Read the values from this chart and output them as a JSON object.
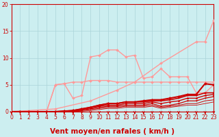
{
  "bg_color": "#cceef0",
  "grid_color": "#aad4d8",
  "axis_color": "#cc0000",
  "xlabel": "Vent moyen/en rafales ( km/h )",
  "xlim": [
    0,
    23
  ],
  "ylim": [
    0,
    20
  ],
  "yticks": [
    0,
    5,
    10,
    15,
    20
  ],
  "xticks": [
    0,
    1,
    2,
    3,
    4,
    5,
    6,
    7,
    8,
    9,
    10,
    11,
    12,
    13,
    14,
    15,
    16,
    17,
    18,
    19,
    20,
    21,
    22,
    23
  ],
  "series": [
    {
      "x": [
        0,
        5,
        9,
        12,
        14,
        17,
        21,
        22,
        23
      ],
      "y": [
        0,
        0.5,
        2.0,
        4.0,
        5.5,
        9.0,
        13.0,
        13.0,
        17.0
      ],
      "color": "#ff9999",
      "lw": 1.0,
      "marker": "D",
      "ms": 2.0
    },
    {
      "x": [
        0,
        4,
        5,
        6,
        7,
        8,
        9,
        10,
        11,
        12,
        13,
        14,
        15,
        16,
        17,
        18,
        19,
        20,
        21,
        22,
        23
      ],
      "y": [
        0,
        0,
        5,
        5.2,
        2.5,
        3.0,
        10.2,
        10.5,
        11.5,
        11.5,
        10.2,
        10.5,
        6.2,
        6.5,
        8.0,
        6.5,
        6.5,
        6.5,
        3.5,
        3.5,
        5.0
      ],
      "color": "#ff9999",
      "lw": 1.0,
      "marker": "D",
      "ms": 2.0
    },
    {
      "x": [
        0,
        4,
        5,
        6,
        7,
        8,
        9,
        10,
        11,
        12,
        13,
        14,
        15,
        16,
        17,
        18,
        19,
        20,
        21,
        22,
        23
      ],
      "y": [
        0,
        0,
        5,
        5.2,
        5.5,
        5.5,
        5.8,
        5.8,
        5.8,
        5.5,
        5.5,
        5.5,
        5.5,
        5.5,
        5.5,
        5.5,
        5.5,
        5.5,
        5.5,
        5.5,
        5.5
      ],
      "color": "#ff9999",
      "lw": 1.0,
      "marker": "D",
      "ms": 2.0
    },
    {
      "x": [
        0,
        1,
        2,
        3,
        4,
        5,
        6,
        7,
        8,
        9,
        10,
        11,
        12,
        13,
        14,
        15,
        16,
        17,
        18,
        19,
        20,
        21,
        22,
        23
      ],
      "y": [
        0,
        0,
        0,
        0,
        0,
        0,
        0.1,
        0.2,
        0.5,
        0.8,
        1.2,
        1.5,
        1.5,
        1.8,
        1.8,
        2.0,
        2.2,
        2.2,
        2.5,
        2.8,
        3.2,
        3.2,
        5.2,
        5.0
      ],
      "color": "#cc0000",
      "lw": 1.5,
      "marker": "D",
      "ms": 2.0
    },
    {
      "x": [
        0,
        1,
        2,
        3,
        4,
        5,
        6,
        7,
        8,
        9,
        10,
        11,
        12,
        13,
        14,
        15,
        16,
        17,
        18,
        19,
        20,
        21,
        22,
        23
      ],
      "y": [
        0,
        0,
        0,
        0,
        0,
        0,
        0.1,
        0.2,
        0.5,
        0.8,
        1.2,
        1.5,
        1.5,
        1.8,
        1.8,
        1.8,
        2.0,
        2.0,
        2.2,
        2.5,
        3.0,
        3.0,
        3.5,
        3.5
      ],
      "color": "#cc0000",
      "lw": 1.2,
      "marker": "s",
      "ms": 1.8
    },
    {
      "x": [
        0,
        1,
        2,
        3,
        4,
        5,
        6,
        7,
        8,
        9,
        10,
        11,
        12,
        13,
        14,
        15,
        16,
        17,
        18,
        19,
        20,
        21,
        22,
        23
      ],
      "y": [
        0,
        0,
        0,
        0,
        0,
        0,
        0.0,
        0.1,
        0.4,
        0.7,
        1.0,
        1.2,
        1.2,
        1.5,
        1.5,
        1.5,
        1.8,
        1.5,
        1.8,
        2.0,
        2.5,
        2.5,
        3.0,
        3.2
      ],
      "color": "#cc0000",
      "lw": 1.0,
      "marker": "^",
      "ms": 1.8
    },
    {
      "x": [
        0,
        1,
        2,
        3,
        4,
        5,
        6,
        7,
        8,
        9,
        10,
        11,
        12,
        13,
        14,
        15,
        16,
        17,
        18,
        19,
        20,
        21,
        22,
        23
      ],
      "y": [
        0,
        0,
        0,
        0,
        0,
        0,
        0.0,
        0.0,
        0.3,
        0.5,
        0.8,
        1.0,
        1.0,
        1.2,
        1.2,
        1.2,
        1.5,
        1.0,
        1.2,
        1.5,
        2.0,
        2.0,
        2.5,
        2.8
      ],
      "color": "#cc0000",
      "lw": 0.9,
      "marker": "v",
      "ms": 1.5
    },
    {
      "x": [
        0,
        1,
        2,
        3,
        4,
        5,
        6,
        7,
        8,
        9,
        10,
        11,
        12,
        13,
        14,
        15,
        16,
        17,
        18,
        19,
        20,
        21,
        22,
        23
      ],
      "y": [
        0,
        0,
        0,
        0,
        0,
        0,
        0.0,
        0.0,
        0.2,
        0.4,
        0.6,
        0.8,
        0.8,
        1.0,
        1.0,
        1.0,
        1.2,
        0.8,
        1.0,
        1.2,
        1.5,
        1.5,
        2.0,
        2.2
      ],
      "color": "#cc0000",
      "lw": 0.7,
      "marker": null,
      "ms": 0
    },
    {
      "x": [
        0,
        1,
        2,
        3,
        4,
        5,
        6,
        7,
        8,
        9,
        10,
        11,
        12,
        13,
        14,
        15,
        16,
        17,
        18,
        19,
        20,
        21,
        22,
        23
      ],
      "y": [
        0,
        0,
        0,
        0,
        0,
        0,
        0.0,
        0.0,
        0.1,
        0.2,
        0.4,
        0.6,
        0.6,
        0.8,
        0.8,
        0.8,
        1.0,
        0.6,
        0.8,
        1.0,
        1.2,
        1.2,
        1.5,
        1.8
      ],
      "color": "#cc0000",
      "lw": 0.6,
      "marker": null,
      "ms": 0
    }
  ],
  "tick_label_fontsize": 5.5,
  "xlabel_fontsize": 7.5
}
